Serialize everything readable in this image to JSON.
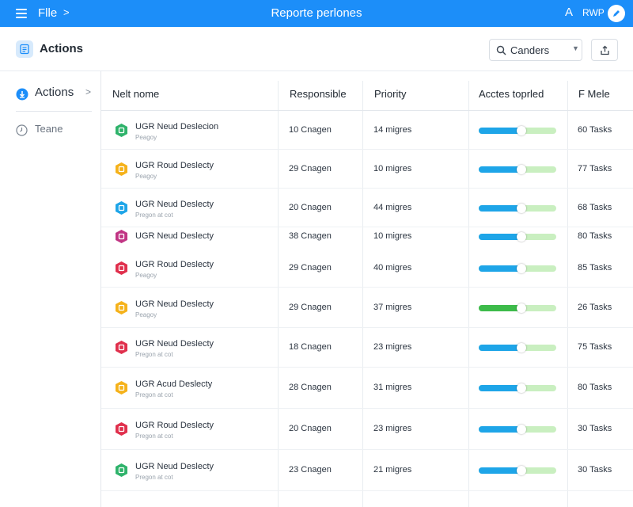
{
  "topbar": {
    "file_label": "Flle",
    "file_chevron": ">",
    "title": "Reporte perlones",
    "font_icon_label": "A",
    "user_label": "RWP"
  },
  "header": {
    "page_title": "Actions",
    "search_value": "Canders"
  },
  "sidebar": {
    "items": [
      {
        "label": "Actions",
        "icon": "download-icon",
        "chevron": ">"
      },
      {
        "label": "Teane",
        "icon": "clock-icon"
      }
    ]
  },
  "table": {
    "columns": [
      "Nelt nome",
      "Responsible",
      "Priority",
      "Acctes toprled",
      "F Mele"
    ],
    "rows": [
      {
        "name": "UGR Neud Deslecion",
        "sub": "Peagoy",
        "resp": "10 Cnagen",
        "prio": "14 migres",
        "progress": 0.55,
        "tasks": "60 Tasks",
        "icon_color": "#2fb36b",
        "bar_color": "#1ea5e8"
      },
      {
        "name": "UGR Roud Deslecty",
        "sub": "Peagoy",
        "resp": "29 Cnagen",
        "prio": "10 migres",
        "progress": 0.55,
        "tasks": "77 Tasks",
        "icon_color": "#f5b21b",
        "bar_color": "#1ea5e8"
      },
      {
        "name": "UGR Neud Deslecty",
        "sub": "Pregon at cot",
        "resp": "20 Cnagen",
        "prio": "44 migres",
        "progress": 0.55,
        "tasks": "68 Tasks",
        "icon_color": "#1ea5e8",
        "bar_color": "#1ea5e8"
      },
      {
        "name": "UGR Neud Deslecty",
        "sub": "",
        "resp": "38 Cnagen",
        "prio": "10 migres",
        "progress": 0.55,
        "tasks": "80 Tasks",
        "icon_color": "#c13584",
        "bar_color": "#1ea5e8"
      },
      {
        "name": "UGR Roud Deslecty",
        "sub": "Peagoy",
        "resp": "29 Cnagen",
        "prio": "40 migres",
        "progress": 0.55,
        "tasks": "85 Tasks",
        "icon_color": "#e0304d",
        "bar_color": "#1ea5e8"
      },
      {
        "name": "UGR Neud Deslecty",
        "sub": "Peagoy",
        "resp": "29 Cnagen",
        "prio": "37 migres",
        "progress": 0.55,
        "tasks": "26 Tasks",
        "icon_color": "#f5b21b",
        "bar_color": "#3dbb4a"
      },
      {
        "name": "UGR Neud Deslecty",
        "sub": "Pregon at cot",
        "resp": "18 Cnagen",
        "prio": "23 migres",
        "progress": 0.55,
        "tasks": "75 Tasks",
        "icon_color": "#e0304d",
        "bar_color": "#1ea5e8"
      },
      {
        "name": "UGR Acud Deslecty",
        "sub": "Pregon at cot",
        "resp": "28 Cnagen",
        "prio": "31 migres",
        "progress": 0.55,
        "tasks": "80 Tasks",
        "icon_color": "#f5b21b",
        "bar_color": "#1ea5e8"
      },
      {
        "name": "UGR Roud Deslecty",
        "sub": "Pregon at cot",
        "resp": "20 Cnagen",
        "prio": "23 migres",
        "progress": 0.55,
        "tasks": "30 Tasks",
        "icon_color": "#e0304d",
        "bar_color": "#1ea5e8"
      },
      {
        "name": "UGR Neud Deslecty",
        "sub": "Pregon at cot",
        "resp": "23 Cnagen",
        "prio": "21 migres",
        "progress": 0.55,
        "tasks": "30 Tasks",
        "icon_color": "#2fb36b",
        "bar_color": "#1ea5e8"
      }
    ]
  }
}
